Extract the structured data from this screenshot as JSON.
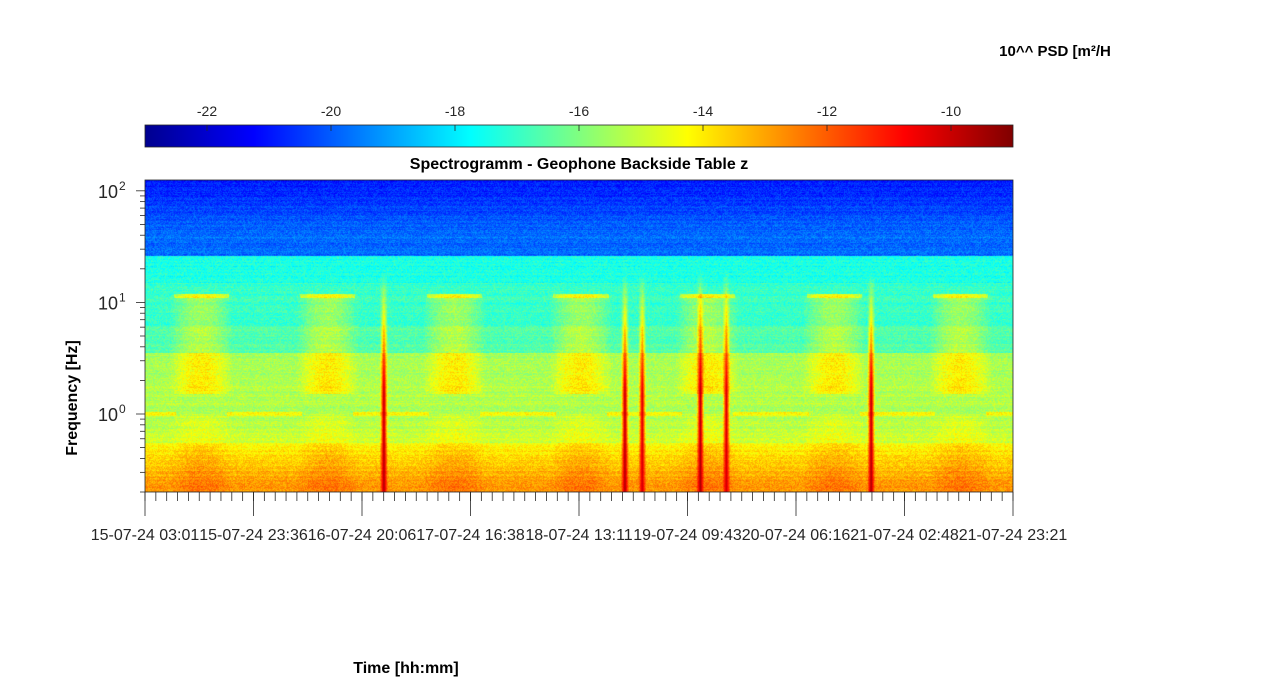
{
  "chart_data": {
    "type": "heatmap",
    "title": "Spectrogramm - Geophone Backside Table z",
    "xlabel": "Time [hh:mm]",
    "ylabel": "Frequency [Hz]",
    "y_scale": "log",
    "ylim": [
      0.2,
      125
    ],
    "y_ticks": [
      {
        "value": 1,
        "base": "10",
        "exp": "0"
      },
      {
        "value": 10,
        "base": "10",
        "exp": "1"
      },
      {
        "value": 100,
        "base": "10",
        "exp": "2"
      }
    ],
    "x_range": [
      "15-07-24 03:01",
      "21-07-24 23:21"
    ],
    "x_ticks": [
      "15-07-24 03:01",
      "15-07-24 23:36",
      "16-07-24 20:06",
      "17-07-24 16:38",
      "18-07-24 13:11",
      "19-07-24 09:43",
      "20-07-24 06:16",
      "21-07-24 02:48",
      "21-07-24 23:21"
    ],
    "colorbar": {
      "label": "10^^ PSD [m²/H",
      "colormap": "jet",
      "range": [
        -23,
        -9
      ],
      "ticks": [
        "-22",
        "-20",
        "-18",
        "-16",
        "-14",
        "-12",
        "-10"
      ],
      "tick_values": [
        -22,
        -20,
        -18,
        -16,
        -14,
        -12,
        -10
      ],
      "location": "top"
    },
    "grid": false,
    "transients": [
      {
        "time_fraction": 0.275,
        "peak_value": -9.5
      },
      {
        "time_fraction": 0.553,
        "peak_value": -9.5
      },
      {
        "time_fraction": 0.573,
        "peak_value": -10
      },
      {
        "time_fraction": 0.64,
        "peak_value": -9.5
      },
      {
        "time_fraction": 0.67,
        "peak_value": -10
      },
      {
        "time_fraction": 0.837,
        "peak_value": -9.5
      }
    ]
  }
}
